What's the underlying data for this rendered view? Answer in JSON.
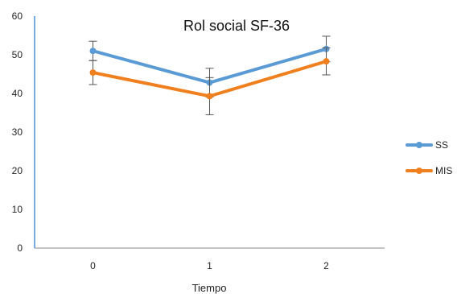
{
  "chart_data": {
    "type": "line",
    "title": "Rol social SF-36",
    "xlabel": "Tiempo",
    "ylabel": "",
    "categories": [
      "0",
      "1",
      "2"
    ],
    "ylim": [
      0,
      60
    ],
    "yticks": [
      0,
      10,
      20,
      30,
      40,
      50,
      60
    ],
    "grid": false,
    "legend_position": "right",
    "series": [
      {
        "name": "SS",
        "color": "#5B9BD5",
        "values": [
          51,
          42.8,
          51.5
        ],
        "error": [
          2.5,
          3.7,
          3.3
        ]
      },
      {
        "name": "MIS",
        "color": "#F07F1E",
        "values": [
          45.4,
          39.3,
          48.3
        ],
        "error": [
          3.1,
          4.8,
          3.5
        ]
      }
    ]
  }
}
